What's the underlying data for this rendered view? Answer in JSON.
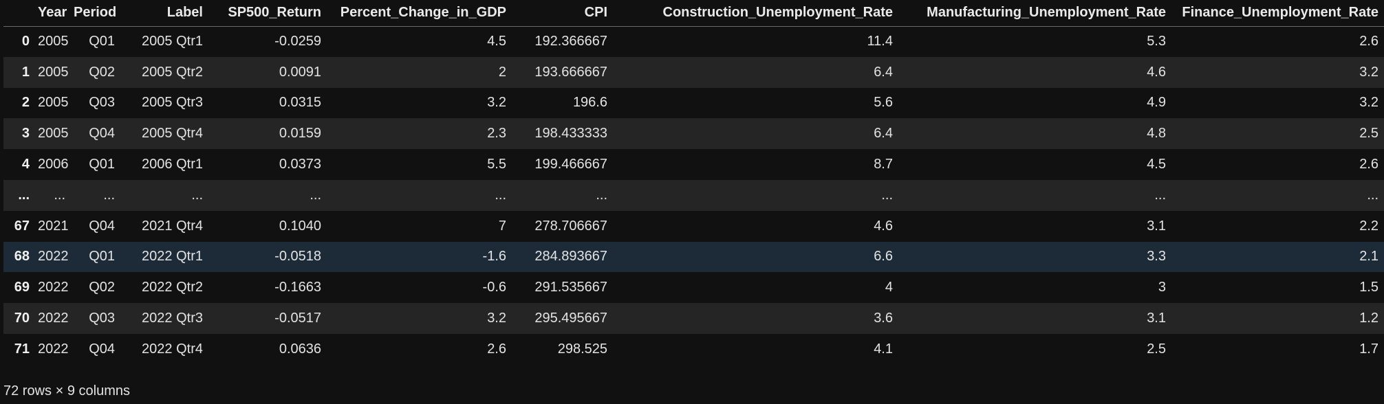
{
  "table": {
    "index_header": "",
    "columns": [
      "Year",
      "Period",
      "Label",
      "SP500_Return",
      "Percent_Change_in_GDP",
      "CPI",
      "Construction_Unemployment_Rate",
      "Manufacturing_Unemployment_Rate",
      "Finance_Unemployment_Rate"
    ],
    "rows": [
      {
        "index": "0",
        "cells": [
          "2005",
          "Q01",
          "2005 Qtr1",
          "-0.0259",
          "4.5",
          "192.366667",
          "11.4",
          "5.3",
          "2.6"
        ]
      },
      {
        "index": "1",
        "cells": [
          "2005",
          "Q02",
          "2005 Qtr2",
          "0.0091",
          "2",
          "193.666667",
          "6.4",
          "4.6",
          "3.2"
        ]
      },
      {
        "index": "2",
        "cells": [
          "2005",
          "Q03",
          "2005 Qtr3",
          "0.0315",
          "3.2",
          "196.6",
          "5.6",
          "4.9",
          "3.2"
        ]
      },
      {
        "index": "3",
        "cells": [
          "2005",
          "Q04",
          "2005 Qtr4",
          "0.0159",
          "2.3",
          "198.433333",
          "6.4",
          "4.8",
          "2.5"
        ]
      },
      {
        "index": "4",
        "cells": [
          "2006",
          "Q01",
          "2006 Qtr1",
          "0.0373",
          "5.5",
          "199.466667",
          "8.7",
          "4.5",
          "2.6"
        ]
      },
      {
        "index": "...",
        "cells": [
          "...",
          "...",
          "...",
          "...",
          "...",
          "...",
          "...",
          "...",
          "..."
        ]
      },
      {
        "index": "67",
        "cells": [
          "2021",
          "Q04",
          "2021 Qtr4",
          "0.1040",
          "7",
          "278.706667",
          "4.6",
          "3.1",
          "2.2"
        ]
      },
      {
        "index": "68",
        "cells": [
          "2022",
          "Q01",
          "2022 Qtr1",
          "-0.0518",
          "-1.6",
          "284.893667",
          "6.6",
          "3.3",
          "2.1"
        ]
      },
      {
        "index": "69",
        "cells": [
          "2022",
          "Q02",
          "2022 Qtr2",
          "-0.1663",
          "-0.6",
          "291.535667",
          "4",
          "3",
          "1.5"
        ]
      },
      {
        "index": "70",
        "cells": [
          "2022",
          "Q03",
          "2022 Qtr3",
          "-0.0517",
          "3.2",
          "295.495667",
          "3.6",
          "3.1",
          "1.2"
        ]
      },
      {
        "index": "71",
        "cells": [
          "2022",
          "Q04",
          "2022 Qtr4",
          "0.0636",
          "2.6",
          "298.525",
          "4.1",
          "2.5",
          "1.7"
        ]
      }
    ],
    "hovered_row": 7
  },
  "footer": {
    "shape_text": "72 rows × 9 columns"
  },
  "colors": {
    "background": "#111111",
    "row_alt": "#252525",
    "row_hover": "#1d2b38",
    "text": "#e3e3e3"
  }
}
